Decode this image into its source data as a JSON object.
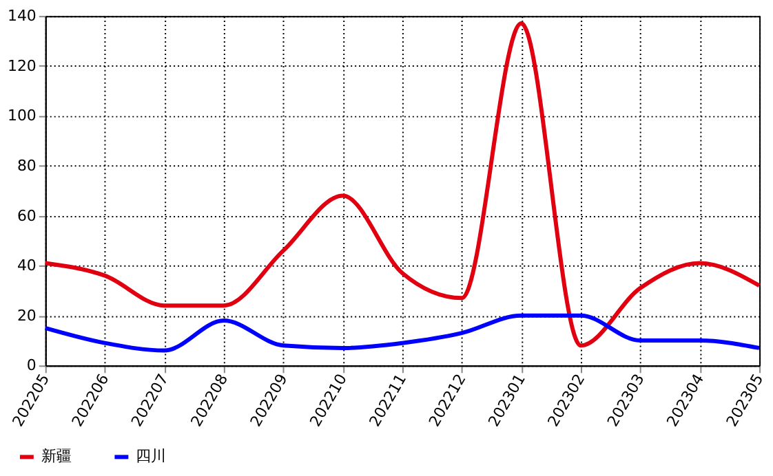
{
  "chart_data": {
    "type": "line",
    "categories": [
      "202205",
      "202206",
      "202207",
      "202208",
      "202209",
      "202210",
      "202211",
      "202212",
      "202301",
      "202302",
      "202303",
      "202304",
      "202305"
    ],
    "series": [
      {
        "name": "新疆",
        "color": "#e00010",
        "values": [
          41,
          36,
          24,
          24,
          46,
          68,
          37,
          27,
          137,
          8,
          31,
          41,
          32
        ]
      },
      {
        "name": "四川",
        "color": "#0000ff",
        "values": [
          15,
          9,
          6,
          18,
          8,
          7,
          9,
          13,
          20,
          20,
          10,
          10,
          7
        ]
      }
    ],
    "ylim": [
      0,
      140
    ],
    "yticks": [
      0,
      20,
      40,
      60,
      80,
      100,
      120,
      140
    ],
    "grid": true,
    "legend": "bottom left",
    "marker": "none",
    "line_style": "solid"
  }
}
